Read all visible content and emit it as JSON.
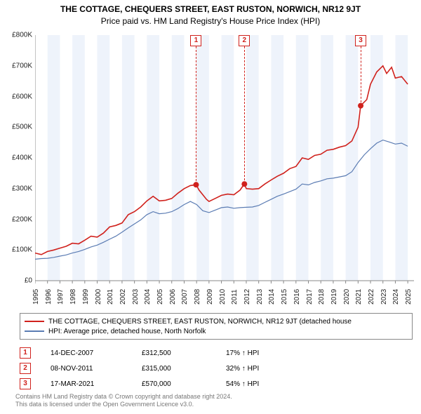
{
  "title": "THE COTTAGE, CHEQUERS STREET, EAST RUSTON, NORWICH, NR12 9JT",
  "subtitle": "Price paid vs. HM Land Registry's House Price Index (HPI)",
  "chart": {
    "type": "line",
    "background_color": "#ffffff",
    "grid_band_color": "#eef3fb",
    "axis_color": "#888888",
    "xlim": [
      1995,
      2025.5
    ],
    "ylim": [
      0,
      800000
    ],
    "ytick_step": 100000,
    "y_ticks": [
      "£0",
      "£100K",
      "£200K",
      "£300K",
      "£400K",
      "£500K",
      "£600K",
      "£700K",
      "£800K"
    ],
    "x_ticks": [
      1995,
      1996,
      1997,
      1998,
      1999,
      2000,
      2001,
      2002,
      2003,
      2004,
      2005,
      2006,
      2007,
      2008,
      2009,
      2010,
      2011,
      2012,
      2013,
      2014,
      2015,
      2016,
      2017,
      2018,
      2019,
      2020,
      2021,
      2022,
      2023,
      2024,
      2025
    ],
    "series": [
      {
        "name": "THE COTTAGE, CHEQUERS STREET, EAST RUSTON, NORWICH, NR12 9JT (detached house",
        "color": "#d0211c",
        "line_width": 1.6,
        "data": [
          [
            1995,
            90000
          ],
          [
            1995.5,
            85000
          ],
          [
            1996,
            95000
          ],
          [
            1996.5,
            100000
          ],
          [
            1997,
            106000
          ],
          [
            1997.5,
            112000
          ],
          [
            1998,
            122000
          ],
          [
            1998.5,
            120000
          ],
          [
            1999,
            132000
          ],
          [
            1999.5,
            145000
          ],
          [
            2000,
            142000
          ],
          [
            2000.5,
            155000
          ],
          [
            2001,
            175000
          ],
          [
            2001.5,
            180000
          ],
          [
            2002,
            188000
          ],
          [
            2002.5,
            215000
          ],
          [
            2003,
            225000
          ],
          [
            2003.5,
            240000
          ],
          [
            2004,
            260000
          ],
          [
            2004.5,
            275000
          ],
          [
            2005,
            260000
          ],
          [
            2005.5,
            262000
          ],
          [
            2006,
            268000
          ],
          [
            2006.5,
            285000
          ],
          [
            2007,
            300000
          ],
          [
            2007.5,
            310000
          ],
          [
            2007.96,
            312500
          ],
          [
            2008.2,
            295000
          ],
          [
            2008.8,
            265000
          ],
          [
            2009,
            258000
          ],
          [
            2009.5,
            268000
          ],
          [
            2010,
            278000
          ],
          [
            2010.5,
            282000
          ],
          [
            2011,
            280000
          ],
          [
            2011.5,
            295000
          ],
          [
            2011.85,
            315000
          ],
          [
            2012,
            300000
          ],
          [
            2012.5,
            298000
          ],
          [
            2013,
            300000
          ],
          [
            2013.5,
            315000
          ],
          [
            2014,
            328000
          ],
          [
            2014.5,
            340000
          ],
          [
            2015,
            350000
          ],
          [
            2015.5,
            365000
          ],
          [
            2016,
            372000
          ],
          [
            2016.5,
            400000
          ],
          [
            2017,
            395000
          ],
          [
            2017.5,
            408000
          ],
          [
            2018,
            412000
          ],
          [
            2018.5,
            425000
          ],
          [
            2019,
            428000
          ],
          [
            2019.5,
            435000
          ],
          [
            2020,
            440000
          ],
          [
            2020.5,
            455000
          ],
          [
            2021,
            500000
          ],
          [
            2021.21,
            570000
          ],
          [
            2021.7,
            590000
          ],
          [
            2022,
            640000
          ],
          [
            2022.5,
            680000
          ],
          [
            2023,
            700000
          ],
          [
            2023.3,
            675000
          ],
          [
            2023.7,
            695000
          ],
          [
            2024,
            660000
          ],
          [
            2024.5,
            665000
          ],
          [
            2025,
            640000
          ]
        ]
      },
      {
        "name": "HPI: Average price, detached house, North Norfolk",
        "color": "#5b7cb3",
        "line_width": 1.2,
        "data": [
          [
            1995,
            70000
          ],
          [
            1995.5,
            72000
          ],
          [
            1996,
            73000
          ],
          [
            1996.5,
            76000
          ],
          [
            1997,
            80000
          ],
          [
            1997.5,
            84000
          ],
          [
            1998,
            90000
          ],
          [
            1998.5,
            95000
          ],
          [
            1999,
            102000
          ],
          [
            1999.5,
            110000
          ],
          [
            2000,
            116000
          ],
          [
            2000.5,
            125000
          ],
          [
            2001,
            135000
          ],
          [
            2001.5,
            145000
          ],
          [
            2002,
            158000
          ],
          [
            2002.5,
            172000
          ],
          [
            2003,
            185000
          ],
          [
            2003.5,
            198000
          ],
          [
            2004,
            215000
          ],
          [
            2004.5,
            225000
          ],
          [
            2005,
            218000
          ],
          [
            2005.5,
            220000
          ],
          [
            2006,
            225000
          ],
          [
            2006.5,
            235000
          ],
          [
            2007,
            248000
          ],
          [
            2007.5,
            258000
          ],
          [
            2008,
            248000
          ],
          [
            2008.5,
            228000
          ],
          [
            2009,
            222000
          ],
          [
            2009.5,
            230000
          ],
          [
            2010,
            238000
          ],
          [
            2010.5,
            240000
          ],
          [
            2011,
            236000
          ],
          [
            2011.5,
            238000
          ],
          [
            2012,
            239000
          ],
          [
            2012.5,
            240000
          ],
          [
            2013,
            245000
          ],
          [
            2013.5,
            255000
          ],
          [
            2014,
            265000
          ],
          [
            2014.5,
            275000
          ],
          [
            2015,
            282000
          ],
          [
            2015.5,
            290000
          ],
          [
            2016,
            298000
          ],
          [
            2016.5,
            315000
          ],
          [
            2017,
            312000
          ],
          [
            2017.5,
            320000
          ],
          [
            2018,
            325000
          ],
          [
            2018.5,
            332000
          ],
          [
            2019,
            334000
          ],
          [
            2019.5,
            338000
          ],
          [
            2020,
            342000
          ],
          [
            2020.5,
            355000
          ],
          [
            2021,
            385000
          ],
          [
            2021.5,
            410000
          ],
          [
            2022,
            430000
          ],
          [
            2022.5,
            448000
          ],
          [
            2023,
            458000
          ],
          [
            2023.5,
            452000
          ],
          [
            2024,
            445000
          ],
          [
            2024.5,
            448000
          ],
          [
            2025,
            438000
          ]
        ]
      }
    ],
    "sale_points": [
      {
        "n": "1",
        "x": 2007.96,
        "y": 312500
      },
      {
        "n": "2",
        "x": 2011.85,
        "y": 315000
      },
      {
        "n": "3",
        "x": 2021.21,
        "y": 570000
      }
    ],
    "marker_vline_color": "#d0211c",
    "point_radius": 4,
    "label_fontsize": 10
  },
  "legend": [
    {
      "color": "#d0211c",
      "label": "THE COTTAGE, CHEQUERS STREET, EAST RUSTON, NORWICH, NR12 9JT (detached house"
    },
    {
      "color": "#5b7cb3",
      "label": "HPI: Average price, detached house, North Norfolk"
    }
  ],
  "sales": [
    {
      "n": "1",
      "date": "14-DEC-2007",
      "price": "£312,500",
      "diff": "17% ↑ HPI"
    },
    {
      "n": "2",
      "date": "08-NOV-2011",
      "price": "£315,000",
      "diff": "32% ↑ HPI"
    },
    {
      "n": "3",
      "date": "17-MAR-2021",
      "price": "£570,000",
      "diff": "54% ↑ HPI"
    }
  ],
  "footer": {
    "line1": "Contains HM Land Registry data © Crown copyright and database right 2024.",
    "line2": "This data is licensed under the Open Government Licence v3.0."
  }
}
